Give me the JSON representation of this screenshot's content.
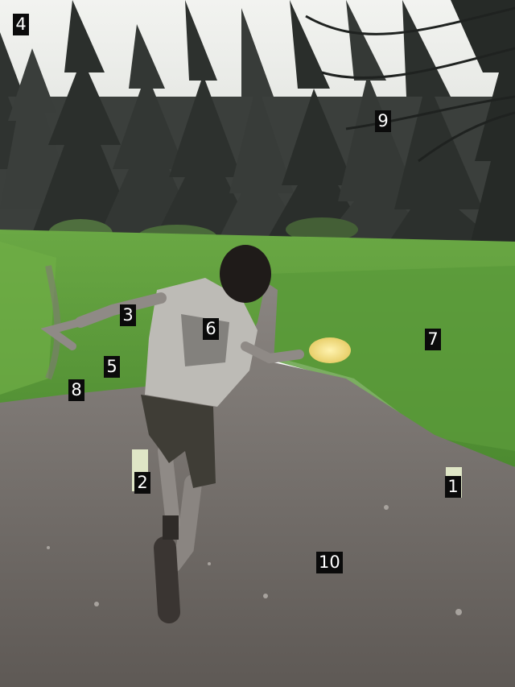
{
  "markers": [
    {
      "label": "1"
    },
    {
      "label": "2"
    },
    {
      "label": "3"
    },
    {
      "label": "4"
    },
    {
      "label": "5"
    },
    {
      "label": "6"
    },
    {
      "label": "7"
    },
    {
      "label": "8"
    },
    {
      "label": "9"
    },
    {
      "label": "10"
    }
  ],
  "colors": {
    "sky": "#e9ece7",
    "trees_dark": "#2a2e2b",
    "trees_mid": "#4d524e",
    "grass": "#5f9e3c",
    "grass_light": "#7fbf52",
    "dirt": "#6f6a66",
    "dirt_light": "#8c8783",
    "disc": "#f3dd83",
    "stake": "#e6edd0"
  }
}
